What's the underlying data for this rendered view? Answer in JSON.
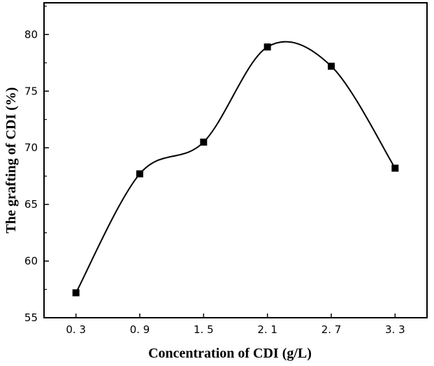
{
  "chart_data": {
    "type": "line",
    "title": "",
    "xlabel": "Concentration of CDI (g/L)",
    "ylabel": "The grafting of CDI (%)",
    "x": [
      0.3,
      0.9,
      1.5,
      2.1,
      2.7,
      3.3
    ],
    "x_tick_labels": [
      "0. 3",
      "0. 9",
      "1. 5",
      "2. 1",
      "2. 7",
      "3. 3"
    ],
    "y_ticks": [
      55,
      60,
      65,
      70,
      75,
      80
    ],
    "xlim": [
      0.0,
      3.6
    ],
    "ylim": [
      55,
      82.8
    ],
    "grid": false,
    "legend": "none",
    "series": [
      {
        "values": [
          57.2,
          67.7,
          70.5,
          78.9,
          77.2,
          68.2
        ],
        "color": "#000000",
        "marker": "square",
        "smooth": true
      }
    ]
  }
}
